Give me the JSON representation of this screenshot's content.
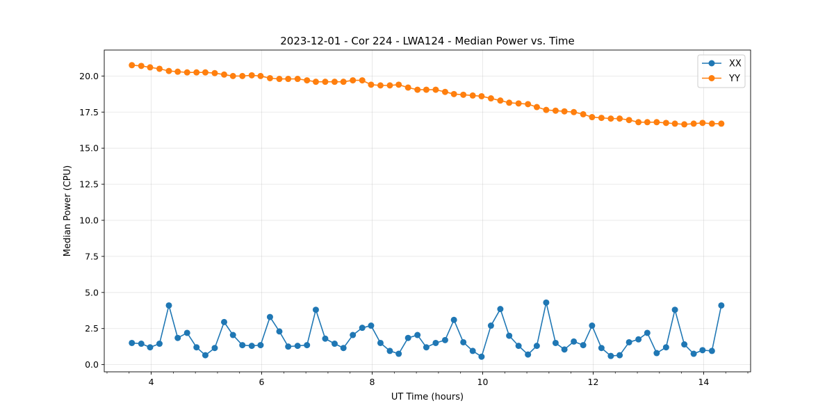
{
  "chart_data": {
    "type": "line",
    "title": "2023-12-01 - Cor 224 - LWA124 - Median Power vs. Time",
    "xlabel": "UT Time (hours)",
    "ylabel": "Median Power (CPU)",
    "xlim": [
      3.15,
      14.85
    ],
    "ylim": [
      -0.5,
      21.8
    ],
    "xticks": [
      4,
      6,
      8,
      10,
      12,
      14
    ],
    "xtick_labels": [
      "4",
      "6",
      "8",
      "10",
      "12",
      "14"
    ],
    "x_minor_step": 0.4,
    "yticks": [
      0,
      2.5,
      5,
      7.5,
      10,
      12.5,
      15,
      17.5,
      20
    ],
    "ytick_labels": [
      "0.0",
      "2.5",
      "5.0",
      "7.5",
      "10.0",
      "12.5",
      "15.0",
      "17.5",
      "20.0"
    ],
    "grid": true,
    "legend_position": "top-right",
    "x": [
      3.65,
      3.82,
      3.98,
      4.15,
      4.32,
      4.48,
      4.65,
      4.82,
      4.98,
      5.15,
      5.32,
      5.48,
      5.65,
      5.82,
      5.98,
      6.15,
      6.32,
      6.48,
      6.65,
      6.82,
      6.98,
      7.15,
      7.32,
      7.48,
      7.65,
      7.82,
      7.98,
      8.15,
      8.32,
      8.48,
      8.65,
      8.82,
      8.98,
      9.15,
      9.32,
      9.48,
      9.65,
      9.82,
      9.98,
      10.15,
      10.32,
      10.48,
      10.65,
      10.82,
      10.98,
      11.15,
      11.32,
      11.48,
      11.65,
      11.82,
      11.98,
      12.15,
      12.32,
      12.48,
      12.65,
      12.82,
      12.98,
      13.15,
      13.32,
      13.48,
      13.65,
      13.82,
      13.98,
      14.15,
      14.32
    ],
    "series": [
      {
        "name": "XX",
        "color": "#1f77b4",
        "values": [
          1.5,
          1.45,
          1.2,
          1.45,
          4.1,
          1.85,
          2.2,
          1.2,
          0.65,
          1.15,
          2.95,
          2.05,
          1.35,
          1.3,
          1.35,
          3.3,
          2.3,
          1.25,
          1.3,
          1.35,
          3.8,
          1.8,
          1.45,
          1.15,
          2.05,
          2.55,
          2.7,
          1.5,
          0.95,
          0.75,
          1.85,
          2.05,
          1.2,
          1.5,
          1.7,
          3.1,
          1.55,
          0.95,
          0.55,
          2.7,
          3.85,
          2.0,
          1.3,
          0.7,
          1.3,
          4.3,
          1.5,
          1.05,
          1.6,
          1.35,
          2.7,
          1.15,
          0.6,
          0.65,
          1.55,
          1.75,
          2.2,
          0.8,
          1.2,
          3.8,
          1.4,
          0.75,
          1.0,
          0.95,
          4.1
        ]
      },
      {
        "name": "YY",
        "color": "#ff7f0e",
        "values": [
          20.75,
          20.7,
          20.6,
          20.5,
          20.35,
          20.3,
          20.25,
          20.25,
          20.25,
          20.2,
          20.1,
          20.0,
          20.0,
          20.05,
          20.0,
          19.85,
          19.8,
          19.8,
          19.8,
          19.7,
          19.6,
          19.6,
          19.6,
          19.6,
          19.7,
          19.7,
          19.4,
          19.35,
          19.35,
          19.4,
          19.2,
          19.05,
          19.05,
          19.05,
          18.9,
          18.75,
          18.7,
          18.65,
          18.6,
          18.45,
          18.3,
          18.15,
          18.1,
          18.05,
          17.85,
          17.65,
          17.6,
          17.55,
          17.5,
          17.35,
          17.15,
          17.1,
          17.05,
          17.05,
          16.95,
          16.8,
          16.8,
          16.8,
          16.75,
          16.7,
          16.65,
          16.7,
          16.75,
          16.7,
          16.7
        ]
      }
    ]
  }
}
